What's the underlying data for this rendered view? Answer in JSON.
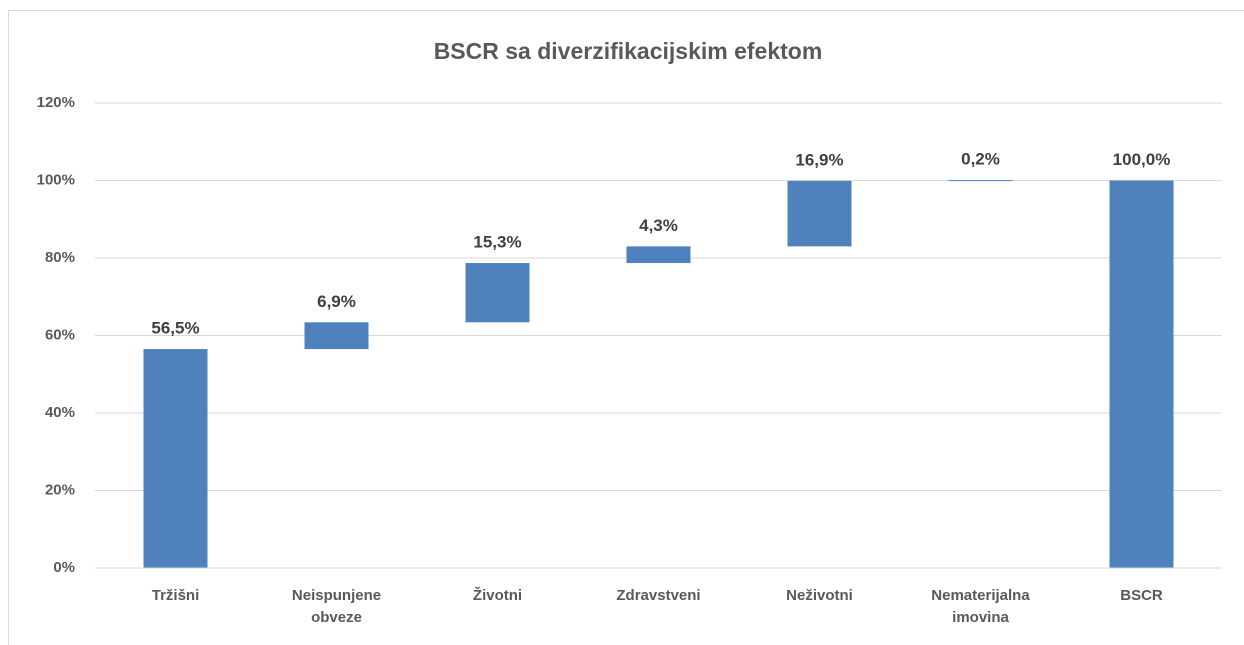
{
  "chart_data": {
    "type": "waterfall",
    "title": "BSCR sa diverzifikacijskim efektom",
    "categories": [
      "Tržišni",
      "Neispunjene obveze",
      "Životni",
      "Zdravstveni",
      "Neživotni",
      "Nematerijalna imovina",
      "BSCR"
    ],
    "values": [
      56.5,
      6.9,
      15.3,
      4.3,
      16.9,
      0.2,
      100.0
    ],
    "value_labels": [
      "56,5%",
      "6,9%",
      "15,3%",
      "4,3%",
      "16,9%",
      "0,2%",
      "100,0%"
    ],
    "color": "#4f81bd",
    "ylim": [
      0,
      120
    ],
    "yticks": [
      {
        "value": 0,
        "label": "0%"
      },
      {
        "value": 20,
        "label": "20%"
      },
      {
        "value": 40,
        "label": "40%"
      },
      {
        "value": 60,
        "label": "60%"
      },
      {
        "value": 80,
        "label": "80%"
      },
      {
        "value": 100,
        "label": "100%"
      },
      {
        "value": 120,
        "label": "120%"
      }
    ],
    "grid": true
  }
}
